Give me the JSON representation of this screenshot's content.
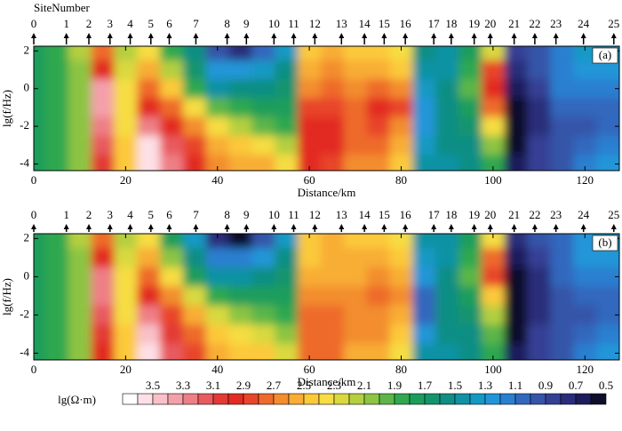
{
  "chart_data": [
    {
      "type": "contour",
      "title": "SiteNumber",
      "panel_label": "(a)",
      "xlabel": "Distance/km",
      "ylabel": "lg(f/Hz)",
      "sites": [
        0,
        1,
        2,
        3,
        4,
        5,
        6,
        7,
        8,
        9,
        10,
        11,
        12,
        13,
        14,
        15,
        16,
        17,
        18,
        19,
        20,
        21,
        22,
        23,
        24,
        25
      ],
      "site_x": [
        0,
        7.1,
        12.0,
        16.6,
        21.0,
        25.5,
        29.5,
        35.3,
        42.1,
        46.3,
        52.3,
        56.6,
        61.2,
        67.0,
        72.0,
        76.3,
        80.9,
        87.1,
        90.9,
        95.9,
        99.4,
        104.6,
        109.1,
        113.7,
        119.7,
        126.3
      ],
      "xlim": [
        0,
        127.5
      ],
      "ylim": [
        -4.35,
        2.25
      ],
      "xticks": [
        0,
        20,
        40,
        60,
        80,
        100,
        120
      ],
      "yticks": [
        -4,
        -2,
        0,
        2
      ],
      "x": [
        0,
        5,
        10,
        15,
        20,
        25,
        30,
        35,
        40,
        45,
        50,
        55,
        60,
        65,
        70,
        75,
        80,
        85,
        90,
        95,
        100,
        105,
        110,
        115,
        120,
        125
      ],
      "y": [
        2,
        1,
        0,
        -1,
        -2,
        -3,
        -4
      ],
      "z": [
        [
          1.8,
          1.9,
          2.2,
          2.8,
          2.2,
          2.4,
          1.9,
          1.6,
          1.0,
          0.8,
          1.1,
          1.4,
          2.5,
          2.6,
          2.5,
          2.5,
          2.4,
          1.6,
          1.5,
          1.8,
          2.3,
          0.9,
          1.0,
          1.2,
          1.4,
          1.4
        ],
        [
          1.8,
          1.9,
          2.1,
          3.0,
          2.3,
          2.6,
          2.2,
          1.7,
          1.3,
          1.3,
          1.4,
          1.6,
          2.6,
          2.7,
          2.6,
          2.6,
          2.5,
          1.5,
          1.5,
          1.9,
          2.9,
          0.8,
          1.0,
          1.2,
          1.3,
          1.3
        ],
        [
          1.8,
          1.9,
          2.1,
          3.4,
          2.4,
          2.8,
          2.5,
          1.9,
          1.5,
          1.6,
          1.6,
          1.7,
          2.7,
          2.8,
          2.7,
          2.8,
          2.7,
          1.4,
          1.6,
          2.0,
          3.0,
          0.7,
          0.9,
          1.2,
          1.2,
          1.2
        ],
        [
          1.8,
          1.9,
          2.1,
          3.4,
          2.4,
          3.0,
          2.8,
          2.4,
          2.0,
          1.9,
          1.8,
          1.8,
          2.9,
          2.9,
          2.8,
          3.0,
          2.9,
          1.3,
          1.6,
          1.8,
          2.8,
          0.6,
          0.8,
          1.1,
          1.1,
          1.1
        ],
        [
          1.8,
          1.9,
          2.1,
          3.3,
          2.4,
          3.3,
          3.0,
          2.7,
          2.4,
          2.2,
          2.0,
          1.9,
          3.0,
          3.0,
          2.8,
          2.9,
          2.7,
          1.3,
          1.6,
          1.7,
          2.4,
          0.6,
          0.8,
          1.0,
          1.0,
          1.1
        ],
        [
          1.8,
          1.9,
          2.1,
          3.2,
          2.5,
          3.6,
          3.2,
          2.9,
          2.6,
          2.5,
          2.4,
          2.2,
          3.0,
          3.0,
          2.8,
          2.8,
          2.6,
          1.4,
          1.6,
          1.6,
          2.1,
          0.6,
          0.9,
          1.0,
          1.1,
          1.2
        ],
        [
          1.8,
          1.9,
          2.1,
          3.1,
          2.5,
          3.6,
          3.3,
          3.0,
          2.7,
          2.6,
          2.6,
          2.4,
          3.0,
          2.9,
          2.7,
          2.7,
          2.5,
          1.5,
          1.5,
          1.6,
          1.9,
          0.7,
          0.9,
          1.0,
          1.2,
          1.3
        ]
      ]
    },
    {
      "type": "contour",
      "panel_label": "(b)",
      "xlabel": "Distance/km",
      "ylabel": "lg(f/Hz)",
      "sites": [
        0,
        1,
        2,
        3,
        4,
        5,
        6,
        7,
        8,
        9,
        10,
        11,
        12,
        13,
        14,
        15,
        16,
        17,
        18,
        19,
        20,
        21,
        22,
        23,
        24,
        25
      ],
      "site_x": [
        0,
        7.1,
        12.0,
        16.6,
        21.0,
        25.5,
        29.5,
        35.3,
        42.1,
        46.3,
        52.3,
        56.6,
        61.2,
        67.0,
        72.0,
        76.3,
        80.9,
        87.1,
        90.9,
        95.9,
        99.4,
        104.6,
        109.1,
        113.7,
        119.7,
        126.3
      ],
      "xlim": [
        0,
        127.5
      ],
      "ylim": [
        -4.35,
        2.25
      ],
      "xticks": [
        0,
        20,
        40,
        60,
        80,
        100,
        120
      ],
      "yticks": [
        -4,
        -2,
        0,
        2
      ],
      "x": [
        0,
        5,
        10,
        15,
        20,
        25,
        30,
        35,
        40,
        45,
        50,
        55,
        60,
        65,
        70,
        75,
        80,
        85,
        90,
        95,
        100,
        105,
        110,
        115,
        120,
        125
      ],
      "y": [
        2,
        1,
        0,
        -1,
        -2,
        -3,
        -4
      ],
      "z": [
        [
          1.8,
          1.9,
          2.2,
          2.8,
          2.2,
          2.4,
          1.8,
          1.4,
          0.8,
          0.6,
          1.0,
          1.4,
          2.5,
          2.6,
          2.5,
          2.5,
          2.4,
          1.5,
          1.5,
          1.8,
          2.4,
          0.8,
          1.0,
          1.1,
          1.3,
          1.4
        ],
        [
          1.8,
          1.9,
          2.1,
          3.0,
          2.3,
          2.6,
          2.1,
          1.6,
          1.2,
          1.2,
          1.3,
          1.6,
          2.5,
          2.6,
          2.6,
          2.6,
          2.5,
          1.4,
          1.5,
          1.9,
          2.8,
          0.7,
          0.9,
          1.1,
          1.3,
          1.3
        ],
        [
          1.8,
          1.9,
          2.1,
          3.3,
          2.4,
          2.8,
          2.4,
          1.8,
          1.5,
          1.5,
          1.6,
          1.7,
          2.6,
          2.6,
          2.6,
          2.7,
          2.6,
          1.3,
          1.6,
          2.0,
          2.9,
          0.6,
          0.8,
          1.1,
          1.2,
          1.2
        ],
        [
          1.8,
          1.9,
          2.1,
          3.3,
          2.4,
          3.0,
          2.7,
          2.3,
          1.9,
          1.8,
          1.8,
          1.8,
          2.7,
          2.7,
          2.7,
          2.8,
          2.7,
          1.1,
          1.6,
          1.8,
          2.5,
          0.5,
          0.8,
          1.0,
          1.1,
          1.1
        ],
        [
          1.8,
          1.9,
          2.1,
          3.2,
          2.4,
          3.3,
          2.9,
          2.6,
          2.3,
          2.1,
          2.0,
          1.9,
          2.8,
          2.8,
          2.7,
          2.7,
          2.6,
          1.1,
          1.6,
          1.7,
          2.2,
          0.4,
          0.8,
          1.0,
          1.0,
          1.1
        ],
        [
          1.8,
          1.9,
          2.1,
          3.1,
          2.5,
          3.5,
          3.1,
          2.8,
          2.5,
          2.4,
          2.3,
          2.1,
          2.8,
          2.8,
          2.7,
          2.7,
          2.5,
          1.3,
          1.6,
          1.6,
          2.0,
          0.6,
          0.9,
          1.0,
          1.1,
          1.2
        ],
        [
          1.8,
          1.9,
          2.1,
          3.0,
          2.5,
          3.6,
          3.2,
          2.9,
          2.6,
          2.5,
          2.5,
          2.3,
          2.8,
          2.8,
          2.6,
          2.6,
          2.4,
          1.5,
          1.5,
          1.6,
          1.9,
          0.7,
          0.9,
          1.0,
          1.2,
          1.3
        ]
      ]
    }
  ],
  "colorbar": {
    "label": "lg(Ω·m)",
    "lim": [
      3.7,
      0.5
    ],
    "ticks": [
      3.5,
      3.3,
      3.1,
      2.9,
      2.7,
      2.5,
      2.3,
      2.1,
      1.9,
      1.7,
      1.5,
      1.3,
      1.1,
      0.9,
      0.7,
      0.5
    ],
    "colors": [
      "#ffffff",
      "#fde0e6",
      "#f9c0c8",
      "#f4a0aa",
      "#ee7f86",
      "#e85a5e",
      "#e33a35",
      "#e22b24",
      "#e8452a",
      "#ee6a2c",
      "#f38d2f",
      "#f8ad34",
      "#fcc93a",
      "#f6dd42",
      "#d9d93f",
      "#b4cf3f",
      "#8cc443",
      "#5cb649",
      "#2fa84f",
      "#1a9d5c",
      "#14946e",
      "#0e8e84",
      "#0f92a4",
      "#1499c4",
      "#2096d8",
      "#2b7fd0",
      "#3268bd",
      "#3655a8",
      "#353f94",
      "#2a2d7a",
      "#1d1d5c",
      "#0e0e2a"
    ]
  }
}
